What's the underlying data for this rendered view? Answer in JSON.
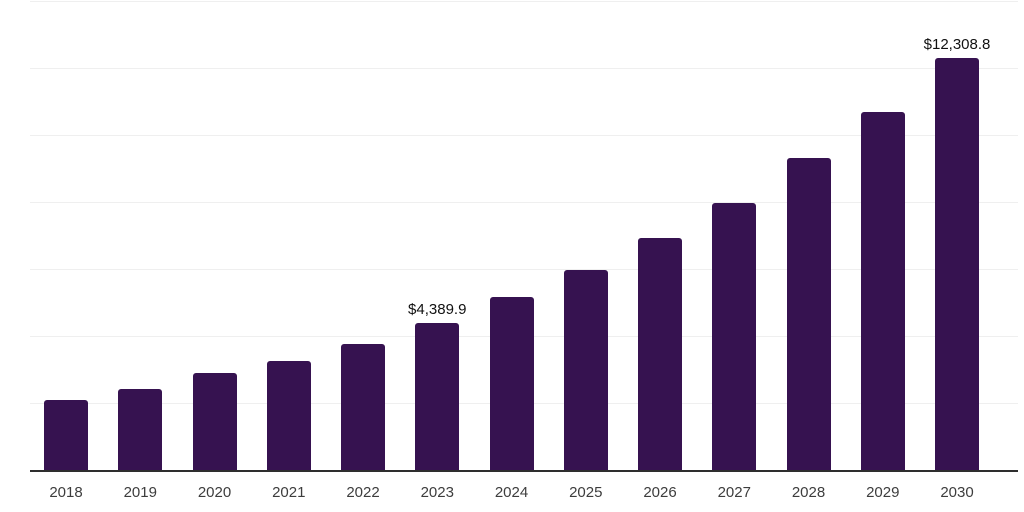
{
  "chart_data": {
    "type": "bar",
    "title": "",
    "xlabel": "",
    "ylabel": "",
    "categories": [
      "2018",
      "2019",
      "2020",
      "2021",
      "2022",
      "2023",
      "2024",
      "2025",
      "2026",
      "2027",
      "2028",
      "2029",
      "2030"
    ],
    "values": [
      2100,
      2430,
      2900,
      3270,
      3775,
      4389.9,
      5170,
      5975,
      6925,
      7965,
      9310,
      10700,
      12308.8
    ],
    "value_labels": {
      "2023": "$4,389.9",
      "2030": "$12,308.8"
    },
    "ylim": [
      0,
      14000
    ],
    "gridline_values": [
      2000,
      4000,
      6000,
      8000,
      10000,
      12000,
      14000
    ],
    "grid": "horizontal",
    "legend_position": "none",
    "y_axis_ticks_visible": false,
    "bar_color": "#361250",
    "axis_line_color": "#2e2e2e",
    "gridline_color": "#efefef",
    "value_label_color": "#111111",
    "x_label_color": "#3d3d3d"
  }
}
